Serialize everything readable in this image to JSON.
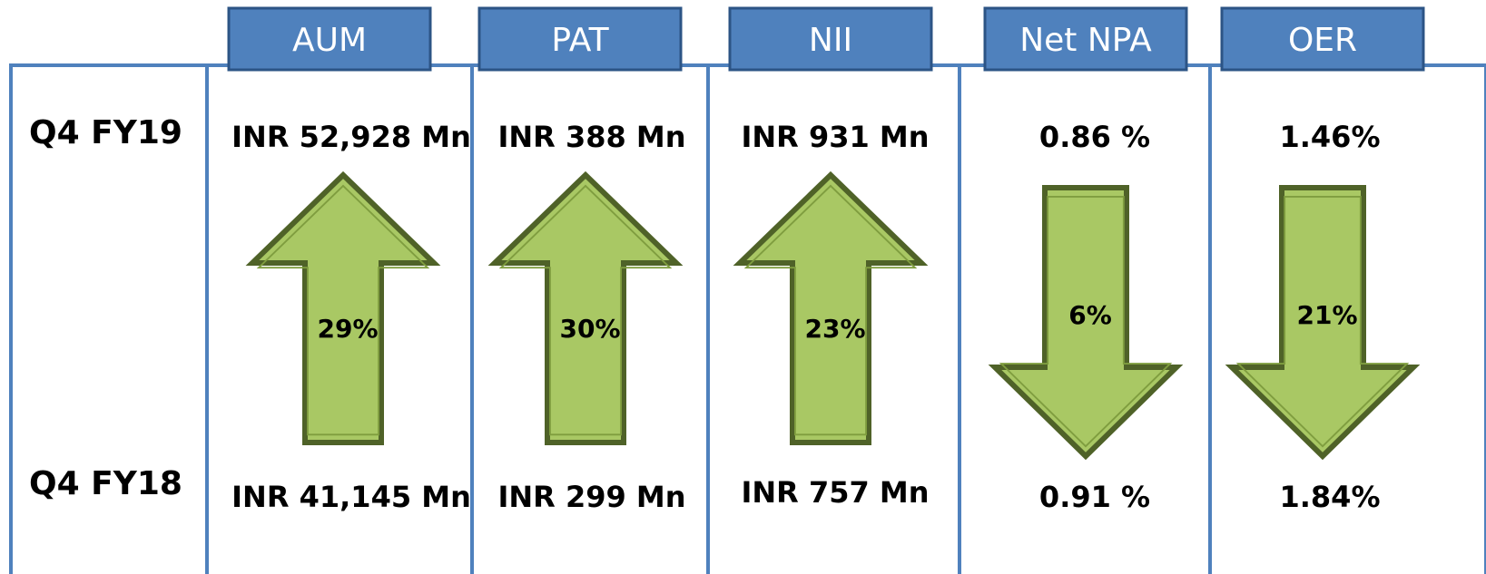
{
  "row_labels": {
    "current": "Q4 FY19",
    "previous": "Q4 FY18"
  },
  "metrics": [
    {
      "name": "AUM",
      "current": "INR 52,928 Mn",
      "change": "29%",
      "previous": "INR 41,145 Mn",
      "direction": "up"
    },
    {
      "name": "PAT",
      "current": "INR 388 Mn",
      "change": "30%",
      "previous": "INR 299 Mn",
      "direction": "up"
    },
    {
      "name": "NII",
      "current": "INR 931 Mn",
      "change": "23%",
      "previous": "INR 757 Mn",
      "direction": "up"
    },
    {
      "name": "Net NPA",
      "current": "0.86 %",
      "change": "6%",
      "previous": "0.91 %",
      "direction": "down"
    },
    {
      "name": "OER",
      "current": "1.46%",
      "change": "21%",
      "previous": "1.84%",
      "direction": "down"
    }
  ]
}
